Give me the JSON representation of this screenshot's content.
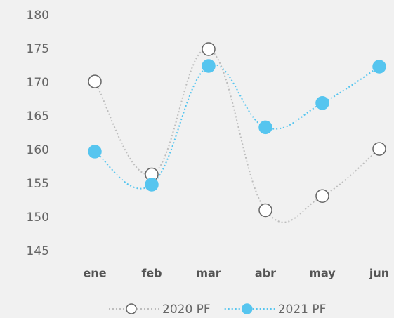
{
  "chart_data": {
    "type": "line",
    "categories": [
      "ene",
      "feb",
      "mar",
      "abr",
      "may",
      "jun"
    ],
    "series": [
      {
        "name": "2020 PF",
        "color": "#bdbdbd",
        "marker_fill": "#ffffff",
        "values": [
          170.2,
          156.4,
          175,
          151.1,
          153.2,
          160.2
        ]
      },
      {
        "name": "2021 PF",
        "color": "#56c5ef",
        "marker_fill": "#56c5ef",
        "values": [
          159.8,
          154.9,
          172.5,
          163.4,
          167.0,
          172.4
        ]
      }
    ],
    "ylim": [
      145,
      180
    ],
    "yticks": [
      145,
      150,
      155,
      160,
      165,
      170,
      175,
      180
    ],
    "grid": false,
    "legend": "bottom"
  }
}
